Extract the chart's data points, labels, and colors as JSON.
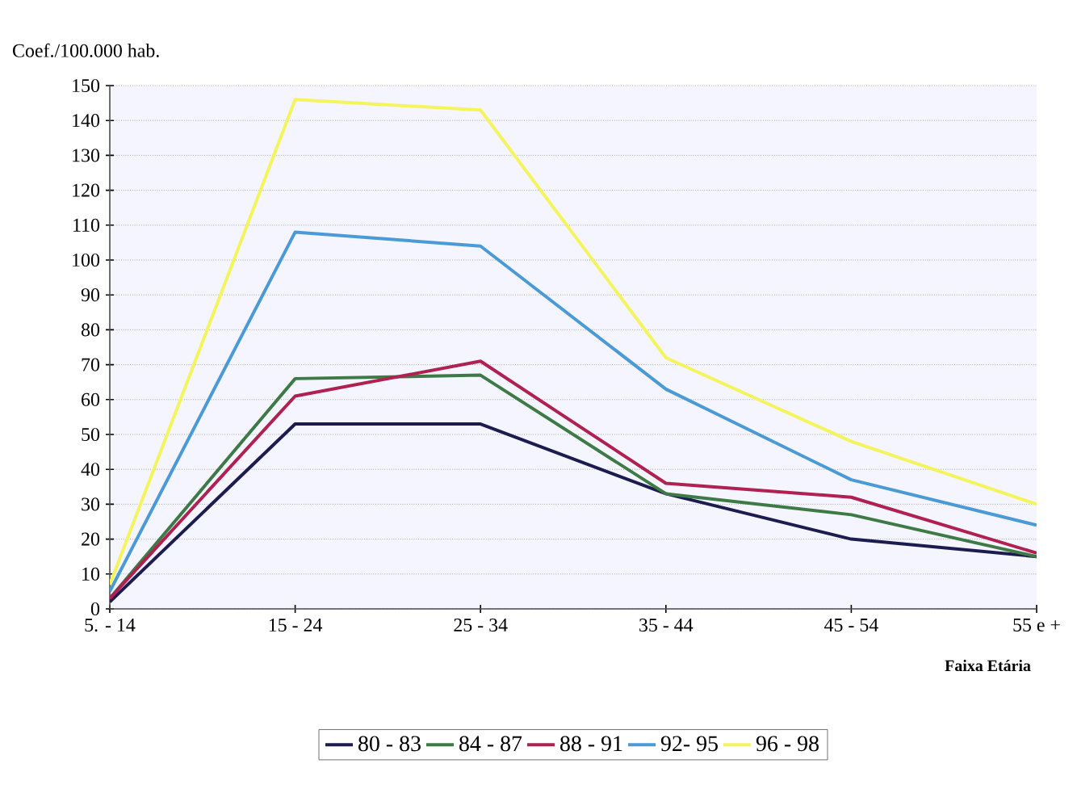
{
  "chart_data": {
    "type": "line",
    "ylabel": "Coef./100.000 hab.",
    "xlabel": "Faixa Etária",
    "categories": [
      "5. - 14",
      "15 - 24",
      "25 - 34",
      "35 - 44",
      "45 - 54",
      "55 e +"
    ],
    "ylim": [
      0,
      150
    ],
    "yticks": [
      0,
      10,
      20,
      30,
      40,
      50,
      60,
      70,
      80,
      90,
      100,
      110,
      120,
      130,
      140,
      150
    ],
    "grid": "y",
    "legend": "bottom",
    "marker": "none",
    "line_style": "solid",
    "series": [
      {
        "name": "80 - 83",
        "color": "#1c1c50",
        "values": [
          2,
          53,
          53,
          33,
          20,
          15
        ]
      },
      {
        "name": "84 - 87",
        "color": "#3d7a45",
        "values": [
          3,
          66,
          67,
          33,
          27,
          15
        ]
      },
      {
        "name": "88 - 91",
        "color": "#b02050",
        "values": [
          3,
          61,
          71,
          36,
          32,
          16
        ]
      },
      {
        "name": "92- 95",
        "color": "#4a9ad8",
        "values": [
          5,
          108,
          104,
          63,
          37,
          24
        ]
      },
      {
        "name": "96 - 98",
        "color": "#f4f45c",
        "values": [
          7,
          146,
          143,
          72,
          48,
          30
        ]
      }
    ]
  }
}
